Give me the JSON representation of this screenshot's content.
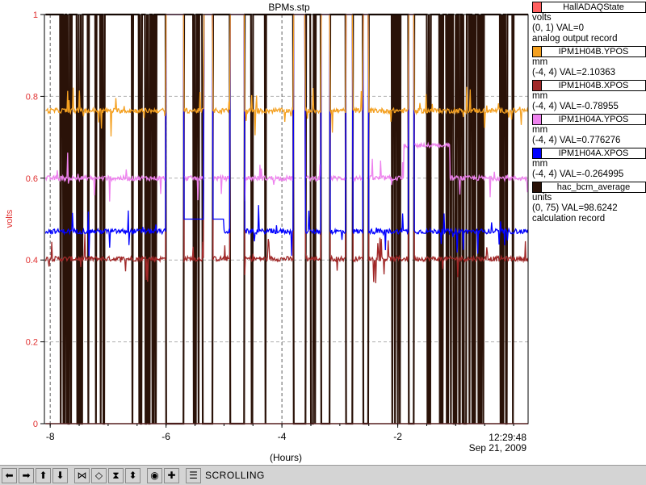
{
  "chart_data": {
    "type": "line",
    "title": "BPMs.stp",
    "xlabel": "(Hours)",
    "ylabel": "volts",
    "xlim": [
      -8.1,
      0.25
    ],
    "ylim": [
      0,
      1
    ],
    "x_ticks": [
      -8,
      -6,
      -4,
      -2
    ],
    "x_tick_labels": [
      "-8",
      "-6",
      "-4",
      "-2"
    ],
    "y_ticks": [
      0,
      0.2,
      0.4,
      0.6,
      0.8,
      1
    ],
    "y_tick_labels": [
      "0",
      "0.2",
      "0.4",
      "0.6",
      "0.8",
      "1"
    ],
    "grid": true,
    "legend_position": "right",
    "time_label": "12:29:48",
    "date_label": "Sep 21, 2009",
    "beam_off_intervals": [
      [
        -6.0,
        -5.7
      ],
      [
        -5.35,
        -5.2
      ],
      [
        -4.9,
        -4.65
      ],
      [
        -3.8,
        -3.6
      ],
      [
        -3.33,
        -3.17
      ],
      [
        -2.9,
        -2.78
      ],
      [
        -2.6,
        -2.5
      ],
      [
        -1.82,
        -1.72
      ]
    ],
    "series": [
      {
        "name": "HallADAQState",
        "color": "#ff5f5f",
        "value_text": "(0, 1) VAL=0",
        "units": "volts",
        "record": "analog output record",
        "level": 0.0
      },
      {
        "name": "IPM1H04B.YPOS",
        "color": "#f4a020",
        "value_text": "(-4, 4) VAL=2.10363",
        "units": "mm",
        "level": 0.765
      },
      {
        "name": "IPM1H04B.XPOS",
        "color": "#a02828",
        "value_text": "(-4, 4) VAL=-0.78955",
        "units": "mm",
        "level": 0.403
      },
      {
        "name": "IPM1H04A.YPOS",
        "color": "#ee82ee",
        "value_text": "(-4, 4) VAL=0.776276",
        "units": "mm",
        "level": 0.6
      },
      {
        "name": "IPM1H04A.XPOS",
        "color": "#0000ff",
        "value_text": "(-4, 4) VAL=-0.264995",
        "units": "mm",
        "level": 0.47
      },
      {
        "name": "hac_bcm_average",
        "color": "#2a1208",
        "value_text": "(0, 75) VAL=98.6242",
        "units": "units",
        "record": "calculation record",
        "level": 1.0
      }
    ]
  },
  "toolbar": {
    "buttons": [
      "scroll-left",
      "scroll-right",
      "scroll-up",
      "scroll-down",
      "zoom-in-x",
      "zoom-out-x",
      "zoom-in-y",
      "zoom-out-y",
      "record",
      "add"
    ],
    "mode_label": "SCROLLING"
  }
}
